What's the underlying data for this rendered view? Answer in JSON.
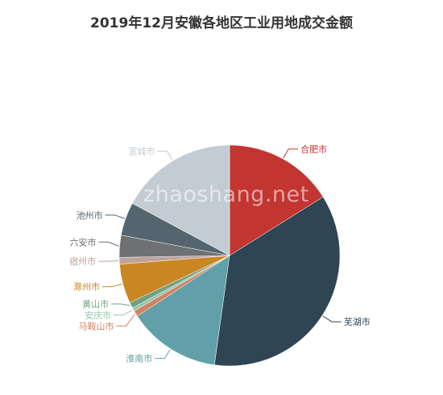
{
  "chart_data": {
    "type": "pie",
    "title": "2019年12月安徽各地区工业用地成交金额",
    "slices": [
      {
        "label": "合肥市",
        "value": 16.5,
        "color": "#c23531"
      },
      {
        "label": "芜湖市",
        "value": 37.0,
        "color": "#2f4554"
      },
      {
        "label": "淮南市",
        "value": 13.9,
        "color": "#61a0a8"
      },
      {
        "label": "马鞍山市",
        "value": 0.9,
        "color": "#d48265"
      },
      {
        "label": "安庆市",
        "value": 0.5,
        "color": "#91c7ae"
      },
      {
        "label": "黄山市",
        "value": 0.9,
        "color": "#749f83"
      },
      {
        "label": "滁州市",
        "value": 5.9,
        "color": "#ca8622"
      },
      {
        "label": "宿州市",
        "value": 1.0,
        "color": "#bda29a"
      },
      {
        "label": "六安市",
        "value": 3.3,
        "color": "#6e7074"
      },
      {
        "label": "池州市",
        "value": 5.0,
        "color": "#546570"
      },
      {
        "label": "宣城市",
        "value": 17.6,
        "color": "#c4ccd3"
      }
    ]
  },
  "watermark": "zhaoshang.net"
}
